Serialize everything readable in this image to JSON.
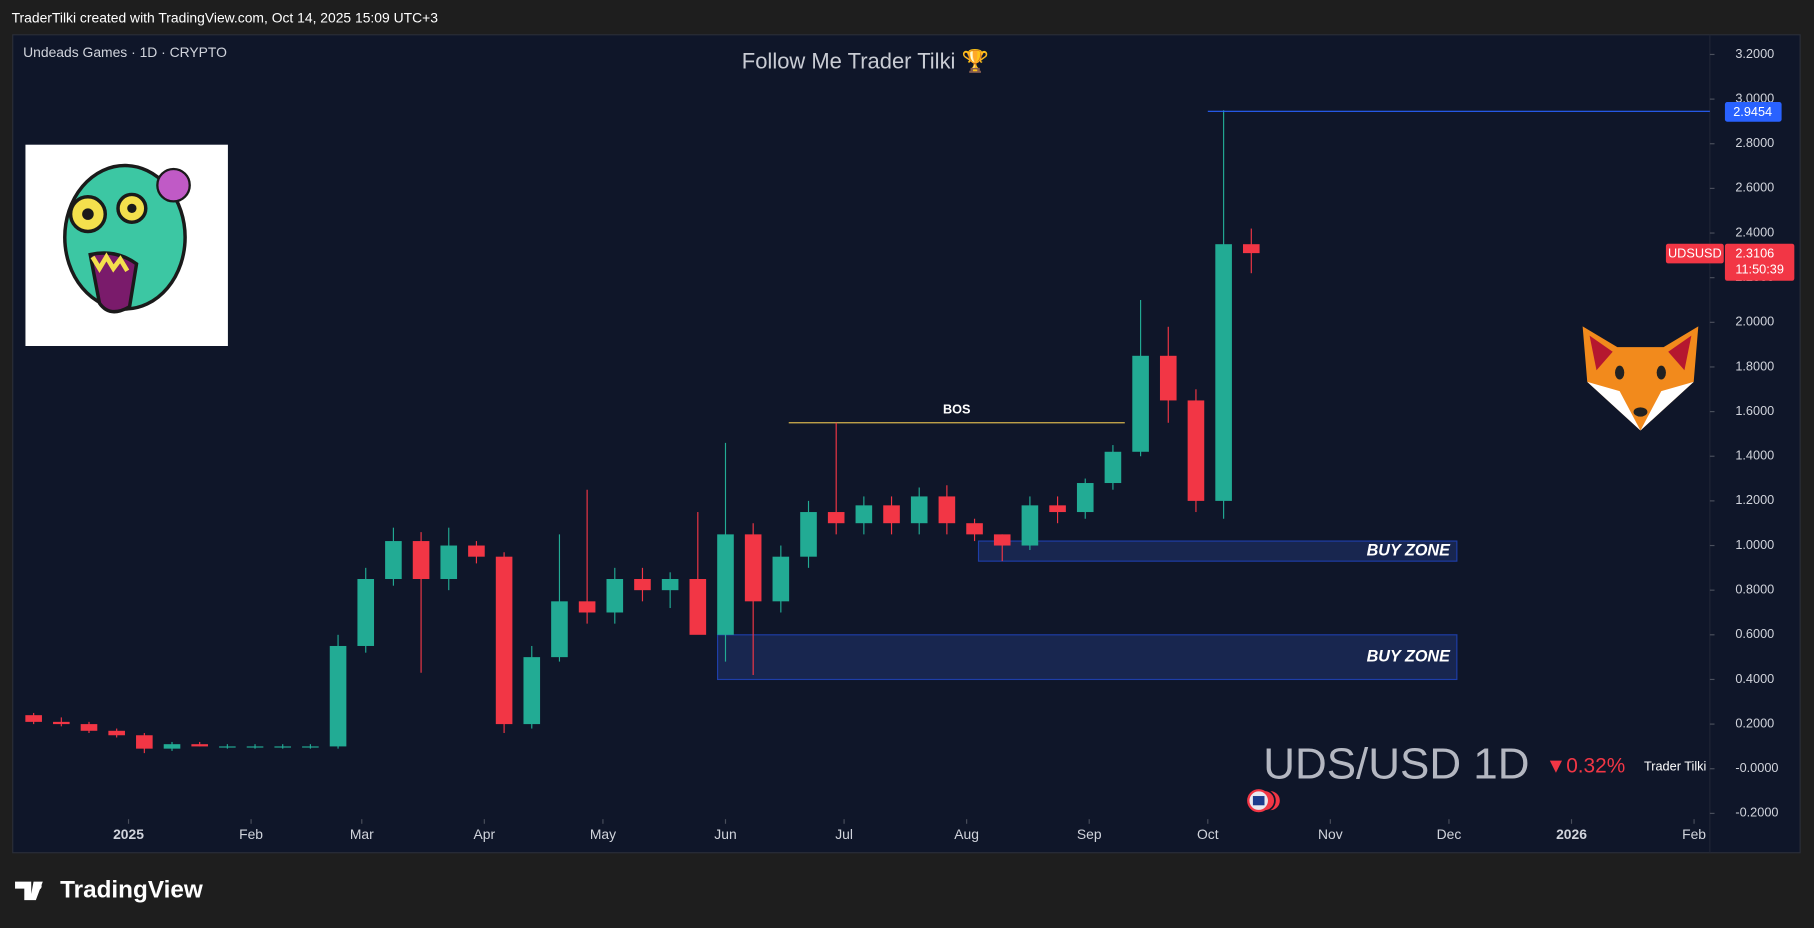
{
  "header": {
    "text": "TraderTilki created with TradingView.com, Oct 14, 2025 15:09 UTC+3"
  },
  "footer": {
    "brand": "TradingView"
  },
  "chart_data": {
    "type": "candlestick",
    "title": "Follow Me Trader Tilki 🏆",
    "subtitle": "Undeads Games · 1D · CRYPTO",
    "x": [
      5,
      12,
      19,
      26,
      33,
      40,
      47,
      54,
      61,
      68,
      75,
      82,
      89,
      96,
      103,
      110,
      117,
      124,
      131,
      138,
      145,
      152,
      159,
      166,
      173,
      180,
      187,
      194,
      201,
      208,
      215,
      222,
      229,
      236,
      243,
      250,
      257,
      264,
      271,
      278,
      285,
      292,
      299,
      306,
      313
    ],
    "open": [
      0.24,
      0.21,
      0.2,
      0.17,
      0.15,
      0.09,
      0.11,
      0.1,
      0.1,
      0.1,
      0.1,
      0.1,
      0.55,
      0.85,
      1.02,
      0.85,
      1.0,
      0.95,
      0.2,
      0.5,
      0.75,
      0.7,
      0.85,
      0.8,
      0.85,
      0.6,
      1.05,
      0.75,
      0.95,
      1.15,
      1.1,
      1.18,
      1.1,
      1.22,
      1.1,
      1.05,
      1.0,
      1.18,
      1.15,
      1.28,
      1.42,
      1.85,
      1.65,
      1.2,
      2.35
    ],
    "high": [
      0.25,
      0.23,
      0.21,
      0.18,
      0.16,
      0.12,
      0.12,
      0.11,
      0.11,
      0.11,
      0.11,
      0.6,
      0.9,
      1.08,
      1.06,
      1.08,
      1.02,
      0.97,
      0.55,
      1.05,
      1.25,
      0.9,
      0.9,
      0.88,
      1.15,
      1.46,
      1.1,
      1.0,
      1.2,
      1.55,
      1.22,
      1.22,
      1.26,
      1.27,
      1.12,
      1.05,
      1.22,
      1.22,
      1.3,
      1.45,
      2.1,
      1.98,
      1.7,
      2.95,
      2.42
    ],
    "low": [
      0.2,
      0.19,
      0.16,
      0.14,
      0.07,
      0.08,
      0.1,
      0.09,
      0.09,
      0.09,
      0.09,
      0.09,
      0.52,
      0.82,
      0.43,
      0.8,
      0.92,
      0.16,
      0.18,
      0.48,
      0.65,
      0.65,
      0.75,
      0.72,
      0.62,
      0.48,
      0.42,
      0.7,
      0.9,
      1.05,
      1.05,
      1.05,
      1.05,
      1.05,
      1.02,
      0.93,
      0.98,
      1.1,
      1.12,
      1.25,
      1.4,
      1.55,
      1.15,
      1.12,
      2.22
    ],
    "close": [
      0.21,
      0.2,
      0.17,
      0.15,
      0.09,
      0.11,
      0.1,
      0.1,
      0.1,
      0.1,
      0.1,
      0.55,
      0.85,
      1.02,
      0.85,
      1.0,
      0.95,
      0.2,
      0.5,
      0.75,
      0.7,
      0.85,
      0.8,
      0.85,
      0.6,
      1.05,
      0.75,
      0.95,
      1.15,
      1.1,
      1.18,
      1.1,
      1.22,
      1.1,
      1.05,
      1.0,
      1.18,
      1.15,
      1.28,
      1.42,
      1.85,
      1.65,
      1.2,
      2.35,
      2.31
    ],
    "up_color": "#22ab94",
    "down_color": "#f23645",
    "xlim": [
      0,
      429
    ],
    "xticks": [
      {
        "value": 29,
        "label": "2025"
      },
      {
        "value": 60,
        "label": "Feb"
      },
      {
        "value": 88,
        "label": "Mar"
      },
      {
        "value": 119,
        "label": "Apr"
      },
      {
        "value": 149,
        "label": "May"
      },
      {
        "value": 180,
        "label": "Jun"
      },
      {
        "value": 210,
        "label": "Jul"
      },
      {
        "value": 241,
        "label": "Aug"
      },
      {
        "value": 272,
        "label": "Sep"
      },
      {
        "value": 302,
        "label": "Oct"
      },
      {
        "value": 333,
        "label": "Nov"
      },
      {
        "value": 363,
        "label": "Dec"
      },
      {
        "value": 394,
        "label": "2026"
      },
      {
        "value": 425,
        "label": "Feb"
      }
    ],
    "ylim": [
      -0.2,
      3.2
    ],
    "yticks": [
      {
        "value": 3.2,
        "label": "3.2000"
      },
      {
        "value": 3.0,
        "label": "3.0000"
      },
      {
        "value": 2.8,
        "label": "2.8000"
      },
      {
        "value": 2.6,
        "label": "2.6000"
      },
      {
        "value": 2.4,
        "label": "2.4000"
      },
      {
        "value": 2.2,
        "label": "2.2000"
      },
      {
        "value": 2.0,
        "label": "2.0000"
      },
      {
        "value": 1.8,
        "label": "1.8000"
      },
      {
        "value": 1.6,
        "label": "1.6000"
      },
      {
        "value": 1.4,
        "label": "1.4000"
      },
      {
        "value": 1.2,
        "label": "1.2000"
      },
      {
        "value": 1.0,
        "label": "1.0000"
      },
      {
        "value": 0.8,
        "label": "0.8000"
      },
      {
        "value": 0.6,
        "label": "0.6000"
      },
      {
        "value": 0.4,
        "label": "0.4000"
      },
      {
        "value": 0.2,
        "label": "0.2000"
      },
      {
        "value": 0,
        "label": "-0.0000"
      },
      {
        "value": -0.2,
        "label": "-0.2000"
      }
    ],
    "high_line": {
      "value": 2.9454,
      "x": [
        302,
        429
      ]
    },
    "bos": {
      "label": "BOS",
      "value": 1.55,
      "x": [
        196,
        281
      ]
    },
    "zones": [
      {
        "label": "BUY ZONE",
        "ylim": [
          0.93,
          1.02
        ],
        "x": [
          244,
          365
        ]
      },
      {
        "label": "BUY ZONE",
        "ylim": [
          0.4,
          0.6
        ],
        "x": [
          178,
          365
        ]
      }
    ],
    "symbol": "UDSUSD",
    "last_price": 2.3106,
    "countdown": "11:50:39",
    "watermark": "UDS/USD 1D",
    "change": "▼0.32%",
    "author": "Trader Tilki"
  }
}
